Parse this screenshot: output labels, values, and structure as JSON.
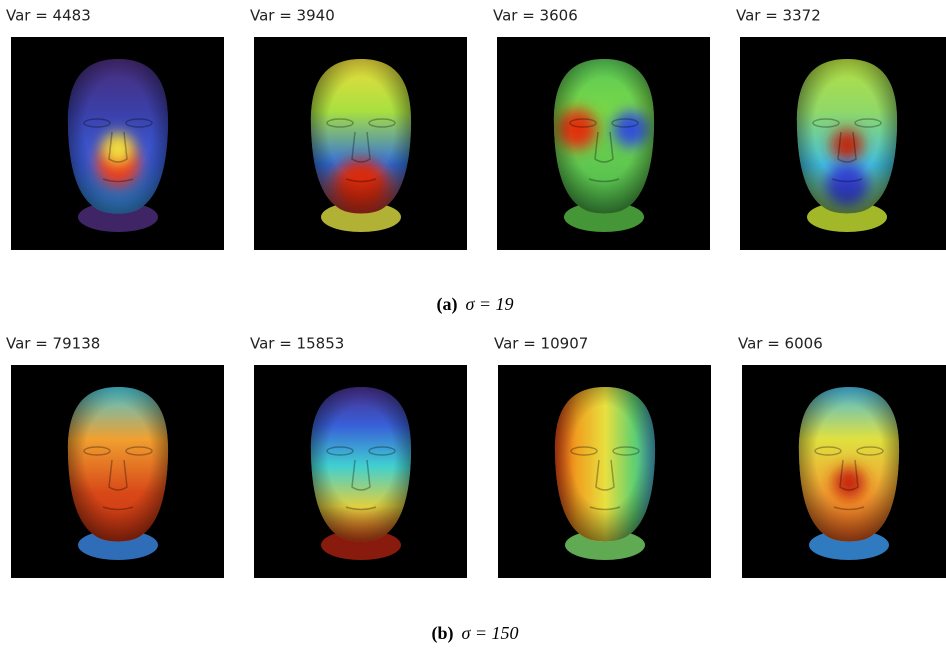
{
  "figure": {
    "rows": [
      {
        "panels": [
          {
            "label": "Var = 4483"
          },
          {
            "label": "Var = 3940"
          },
          {
            "label": "Var = 3606"
          },
          {
            "label": "Var = 3372"
          }
        ],
        "caption": {
          "tag": "(a)",
          "text": "σ = 19"
        }
      },
      {
        "panels": [
          {
            "label": "Var = 79138"
          },
          {
            "label": "Var = 15853"
          },
          {
            "label": "Var = 10907"
          },
          {
            "label": "Var = 6006"
          }
        ],
        "caption": {
          "tag": "(b)",
          "text": "σ = 150"
        }
      }
    ]
  }
}
